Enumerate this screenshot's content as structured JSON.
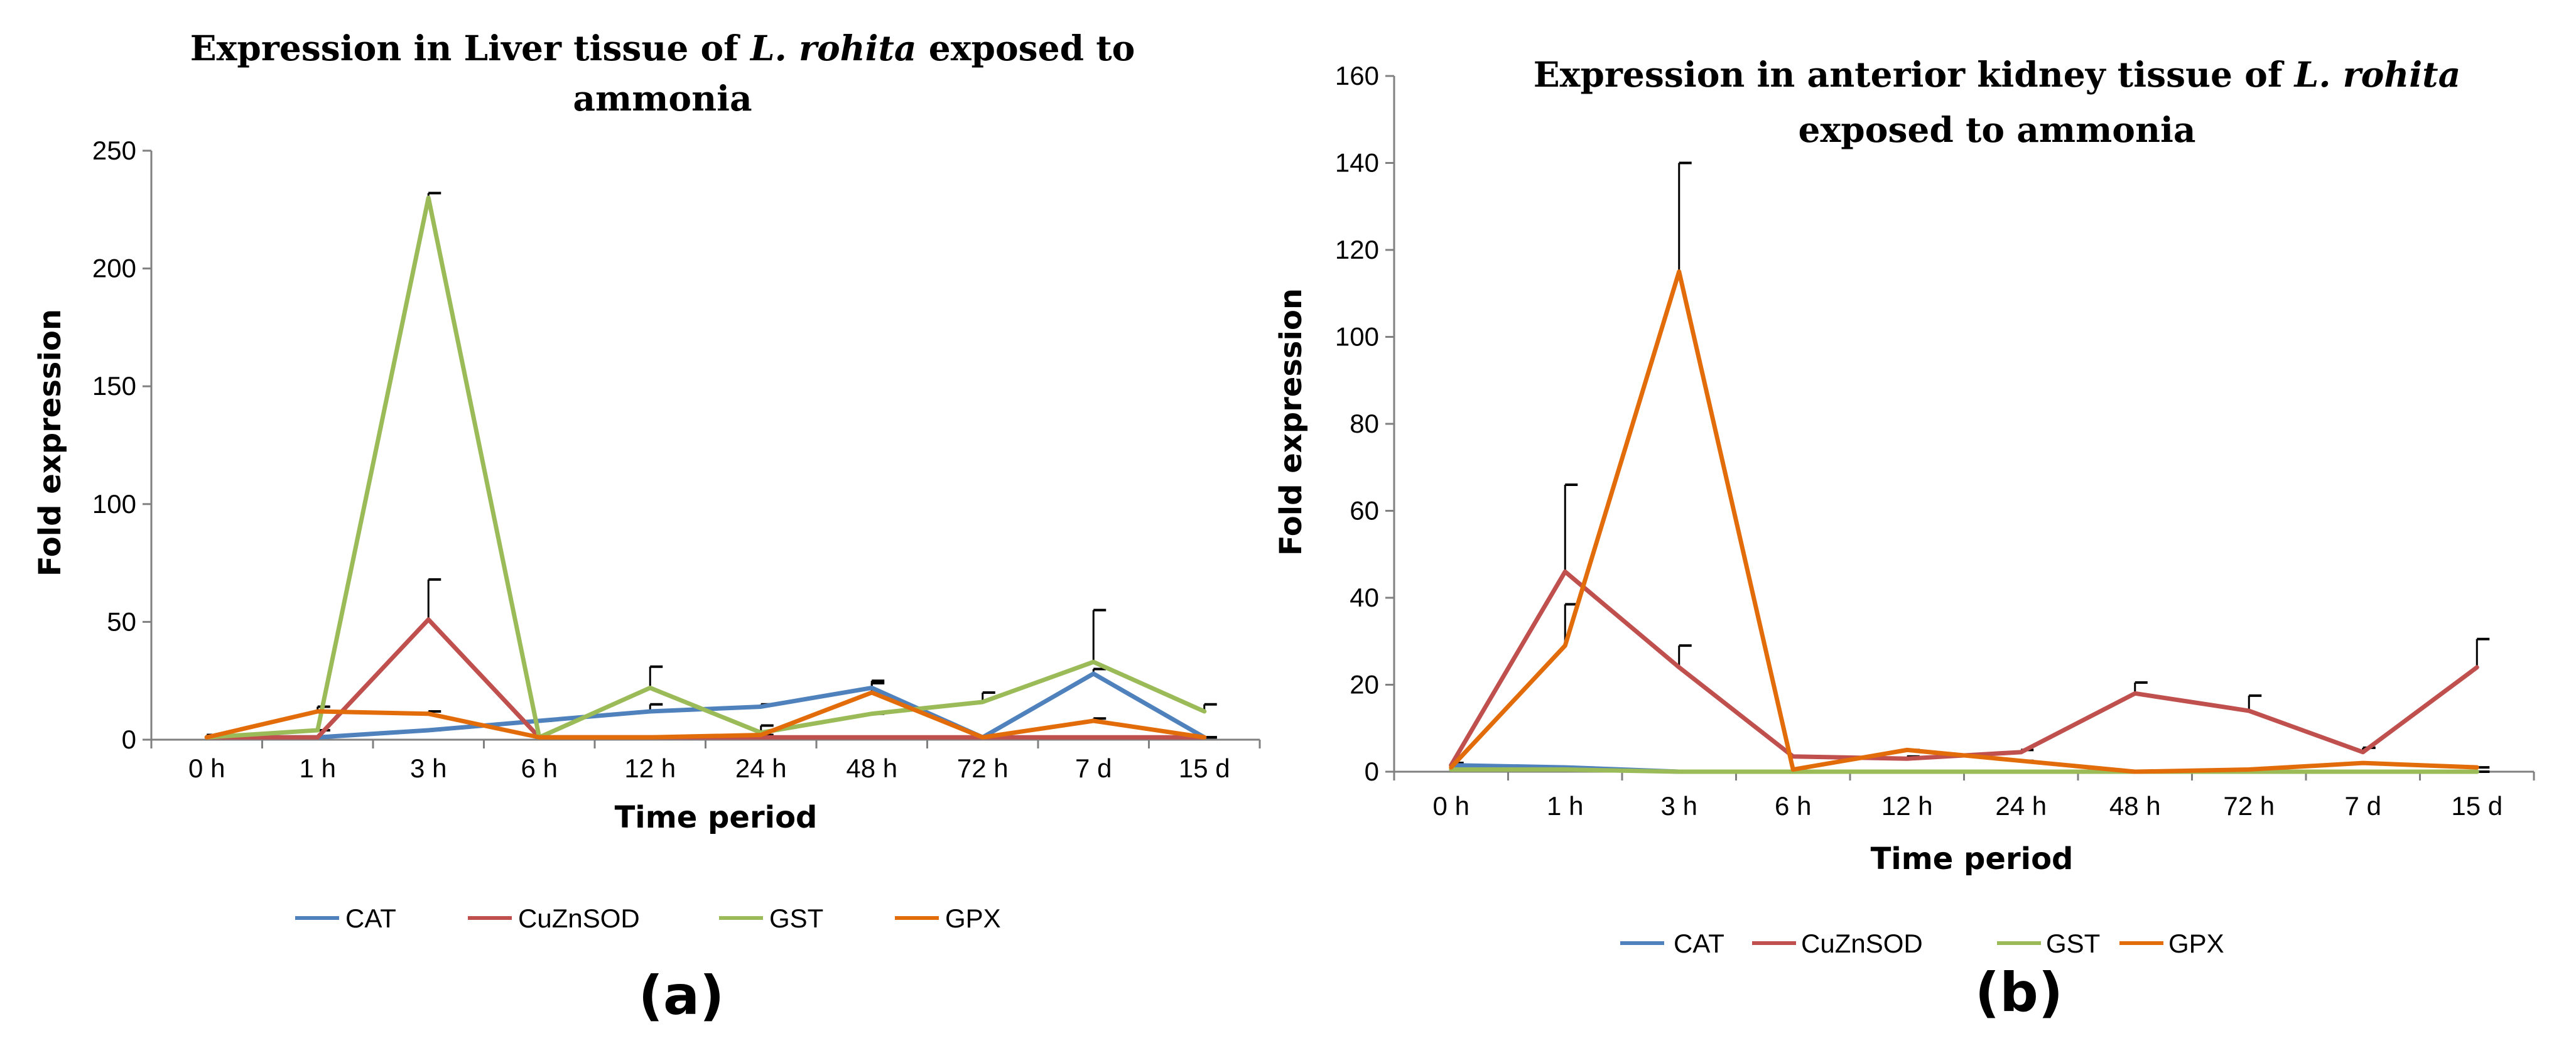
{
  "chart_data": [
    {
      "type": "line",
      "title_line1_prefix": "Expression in Liver tissue of ",
      "title_line1_species": "L. rohita",
      "title_line1_suffix": " exposed to",
      "title_line2": "ammonia",
      "xlabel": "Time period",
      "ylabel": "Fold expression",
      "ylim": [
        0,
        250
      ],
      "yticks": [
        "0",
        "50",
        "100",
        "150",
        "200",
        "250"
      ],
      "categories": [
        "0 h",
        "1 h",
        "3 h",
        "6 h",
        "12 h",
        "24 h",
        "48 h",
        "72 h",
        "7 d",
        "15 d"
      ],
      "series": [
        {
          "name": "CAT",
          "color": "#4f81bd",
          "values": [
            1,
            1,
            4,
            8,
            12,
            14,
            22,
            1,
            28,
            1
          ],
          "errors": [
            0,
            0,
            0,
            0,
            3,
            1,
            3,
            0,
            2,
            0
          ]
        },
        {
          "name": "CuZnSOD",
          "color": "#c0504d",
          "values": [
            1,
            1,
            51,
            1,
            1,
            1,
            1,
            1,
            1,
            1
          ],
          "errors": [
            0,
            0,
            17,
            0,
            0,
            0,
            0,
            0,
            0,
            0
          ]
        },
        {
          "name": "GST",
          "color": "#9bbb59",
          "values": [
            1,
            4,
            230,
            1,
            22,
            3,
            11,
            16,
            33,
            12
          ],
          "errors": [
            0,
            0,
            2,
            0,
            9,
            3,
            0,
            4,
            22,
            3
          ]
        },
        {
          "name": "GPX",
          "color": "#e36c0a",
          "values": [
            1,
            12,
            11,
            1,
            1,
            2,
            20,
            1,
            8,
            1
          ],
          "errors": [
            1,
            2,
            1,
            0,
            0,
            0,
            4,
            0,
            1,
            0
          ]
        }
      ],
      "panel_label": "(a)"
    },
    {
      "type": "line",
      "title_line1_prefix": "Expression in anterior kidney tissue of ",
      "title_line1_species": "L. rohita",
      "title_line1_suffix": "",
      "title_line2": "exposed to ammonia",
      "xlabel": "Time period",
      "ylabel": "Fold expression",
      "ylim": [
        0,
        160
      ],
      "yticks": [
        "0",
        "20",
        "40",
        "60",
        "80",
        "100",
        "120",
        "140",
        "160"
      ],
      "categories": [
        "0 h",
        "1 h",
        "3 h",
        "6 h",
        "12 h",
        "24 h",
        "48 h",
        "72 h",
        "7 d",
        "15 d"
      ],
      "series": [
        {
          "name": "CAT",
          "color": "#4f81bd",
          "values": [
            1.5,
            1,
            0,
            0,
            0,
            0,
            0,
            0,
            0,
            0
          ],
          "errors": [
            0,
            0,
            0,
            0,
            0,
            0,
            0,
            0,
            0,
            0
          ]
        },
        {
          "name": "CuZnSOD",
          "color": "#c0504d",
          "values": [
            1.5,
            46,
            24,
            3.5,
            3,
            4.5,
            18,
            14,
            4.5,
            24
          ],
          "errors": [
            0.5,
            20,
            5,
            0,
            0.5,
            0.5,
            2.5,
            3.5,
            1,
            6.5
          ]
        },
        {
          "name": "GST",
          "color": "#9bbb59",
          "values": [
            0.5,
            0.5,
            0,
            0,
            0,
            0,
            0,
            0,
            0,
            0
          ],
          "errors": [
            0,
            0,
            0,
            0,
            0,
            0,
            0,
            0,
            0,
            0
          ]
        },
        {
          "name": "GPX",
          "color": "#e36c0a",
          "values": [
            1,
            29,
            115,
            0.5,
            5,
            2.5,
            0,
            0.5,
            2,
            1
          ],
          "errors": [
            0,
            9.5,
            25,
            0,
            0,
            0,
            0,
            0,
            0,
            0
          ]
        }
      ],
      "panel_label": "(b)"
    }
  ]
}
